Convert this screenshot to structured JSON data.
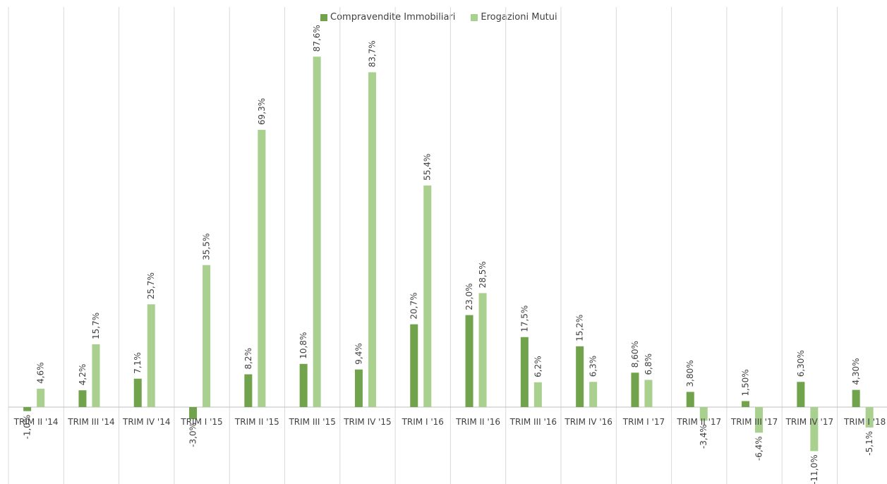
{
  "chart_data": {
    "type": "bar",
    "categories": [
      "TRIM II '14",
      "TRIM III '14",
      "TRIM IV '14",
      "TRIM I '15",
      "TRIM II '15",
      "TRIM III '15",
      "TRIM IV '15",
      "TRIM I '16",
      "TRIM II '16",
      "TRIM III '16",
      "TRIM IV '16",
      "TRIM I '17",
      "TRIM II '17",
      "TRIM III '17",
      "TRIM IV '17",
      "TRIM I '18"
    ],
    "series": [
      {
        "name": "Compravendite Immobiliari",
        "color": "#70a34b",
        "values": [
          -1.0,
          4.2,
          7.1,
          -3.0,
          8.2,
          10.8,
          9.4,
          20.7,
          23.0,
          17.5,
          15.2,
          8.6,
          3.8,
          1.5,
          6.3,
          4.3
        ],
        "labels": [
          "-1,0%",
          "4,2%",
          "7,1%",
          "-3,0%",
          "8,2%",
          "10,8%",
          "9,4%",
          "20,7%",
          "23,0%",
          "17,5%",
          "15,2%",
          "8,60%",
          "3,80%",
          "1,50%",
          "6,30%",
          "4,30%"
        ]
      },
      {
        "name": "Erogazioni Mutui",
        "color": "#a9d08e",
        "values": [
          4.6,
          15.7,
          25.7,
          35.5,
          69.3,
          87.6,
          83.7,
          55.4,
          28.5,
          6.2,
          6.3,
          6.8,
          -3.4,
          -6.4,
          -11.0,
          -5.1
        ],
        "labels": [
          "4,6%",
          "15,7%",
          "25,7%",
          "35,5%",
          "69,3%",
          "87,6%",
          "83,7%",
          "55,4%",
          "28,5%",
          "6,2%",
          "6,3%",
          "6,8%",
          "-3,4%",
          "-6,4%",
          "-11,0%",
          "-5,1%"
        ]
      }
    ],
    "ylim": [
      -20,
      100
    ],
    "grid": "vertical category separators",
    "legend": "top-center"
  }
}
